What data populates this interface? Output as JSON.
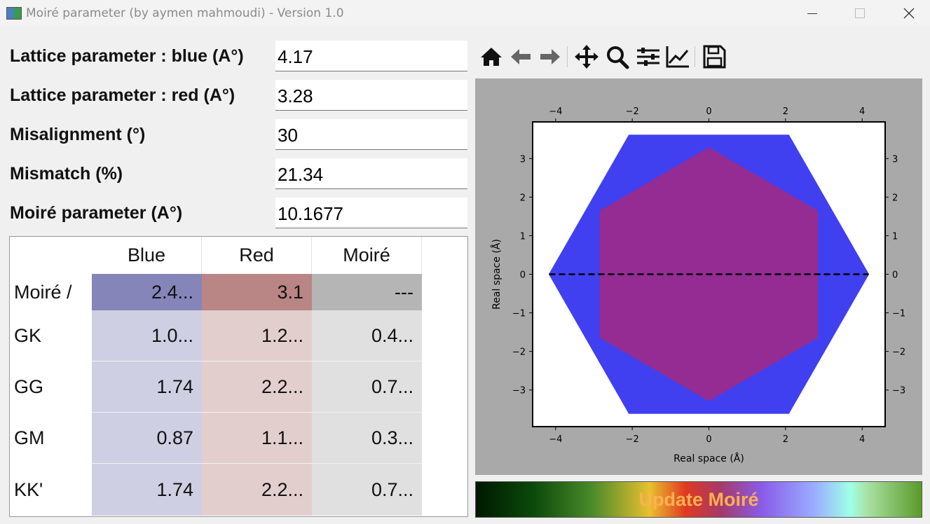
{
  "window": {
    "title": "Moiré parameter (by aymen mahmoudi) - Version 1.0",
    "controls": [
      "minimize",
      "maximize",
      "close"
    ]
  },
  "fields": [
    {
      "label": "Lattice parameter : blue (A°)",
      "value": "4.17"
    },
    {
      "label": "Lattice parameter : red (A°)",
      "value": "3.28"
    },
    {
      "label": "Misalignment (°)",
      "value": "30"
    },
    {
      "label": "Mismatch (%)",
      "value": "21.34"
    },
    {
      "label": "Moiré parameter (A°)",
      "value": "10.1677"
    }
  ],
  "table": {
    "columns": [
      "Blue",
      "Red",
      "Moiré"
    ],
    "rows": [
      {
        "label": "Moiré /",
        "values": [
          "2.4...",
          "3.1",
          "---"
        ],
        "selected": true
      },
      {
        "label": "GK",
        "values": [
          "1.0...",
          "1.2...",
          "0.4..."
        ]
      },
      {
        "label": "GG",
        "values": [
          "1.74",
          "2.2...",
          "0.7..."
        ]
      },
      {
        "label": "GM",
        "values": [
          "0.87",
          "1.1...",
          "0.3..."
        ]
      },
      {
        "label": "KK'",
        "values": [
          "1.74",
          "2.2...",
          "0.7..."
        ]
      }
    ]
  },
  "toolbar": {
    "icons": [
      "home-icon",
      "back-icon",
      "forward-icon",
      "pan-icon",
      "zoom-icon",
      "subplots-icon",
      "customize-icon",
      "save-icon"
    ]
  },
  "chart_data": {
    "type": "area",
    "title": "",
    "xlabel": "Real space (Å)",
    "ylabel": "Real space (Å)",
    "xlim": [
      -4.6,
      4.6
    ],
    "ylim": [
      -3.95,
      3.95
    ],
    "xticks": [
      -4,
      -2,
      0,
      2,
      4
    ],
    "yticks": [
      -3,
      -2,
      -1,
      0,
      1,
      2,
      3
    ],
    "tick_labels_x": [
      "−4",
      "−2",
      "0",
      "2",
      "4"
    ],
    "tick_labels_y": [
      "−3",
      "−2",
      "−1",
      "0",
      "1",
      "2",
      "3"
    ],
    "grid": false,
    "series": [
      {
        "color": "#4040f0",
        "points": [
          [
            -4.17,
            0
          ],
          [
            -2.085,
            3.611
          ],
          [
            2.085,
            3.611
          ],
          [
            4.17,
            0
          ],
          [
            2.085,
            -3.611
          ],
          [
            -2.085,
            -3.611
          ]
        ]
      },
      {
        "color": "#942c94",
        "points": [
          [
            0,
            3.28
          ],
          [
            2.84,
            1.64
          ],
          [
            2.84,
            -1.64
          ],
          [
            0,
            -3.28
          ],
          [
            -2.84,
            -1.64
          ],
          [
            -2.84,
            1.64
          ]
        ]
      }
    ],
    "annotations": [
      {
        "type": "dashed-line",
        "color": "#000000",
        "from": [
          -4.17,
          0
        ],
        "to": [
          4.17,
          0
        ]
      }
    ]
  },
  "update_button": {
    "label": "Update Moiré"
  }
}
